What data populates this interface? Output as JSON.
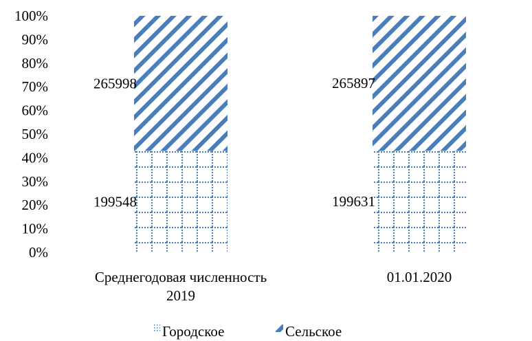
{
  "chart_data": {
    "type": "bar",
    "stacked": "percent",
    "categories": [
      [
        "Среднегодовая численность",
        "2019"
      ],
      [
        "01.01.2020"
      ]
    ],
    "series": [
      {
        "name": "Городское",
        "values": [
          199548,
          199631
        ],
        "pattern": "dotted-grid",
        "color": "#4a7ebb"
      },
      {
        "name": "Сельское",
        "values": [
          265998,
          265897
        ],
        "pattern": "diagonal-stripes",
        "color": "#4a7ebb"
      }
    ],
    "ylim": [
      0,
      100
    ],
    "yticks": [
      "0%",
      "10%",
      "20%",
      "30%",
      "40%",
      "50%",
      "60%",
      "70%",
      "80%",
      "90%",
      "100%"
    ],
    "grid": false,
    "legend": "bottom",
    "title": "",
    "xlabel": "",
    "ylabel": ""
  }
}
